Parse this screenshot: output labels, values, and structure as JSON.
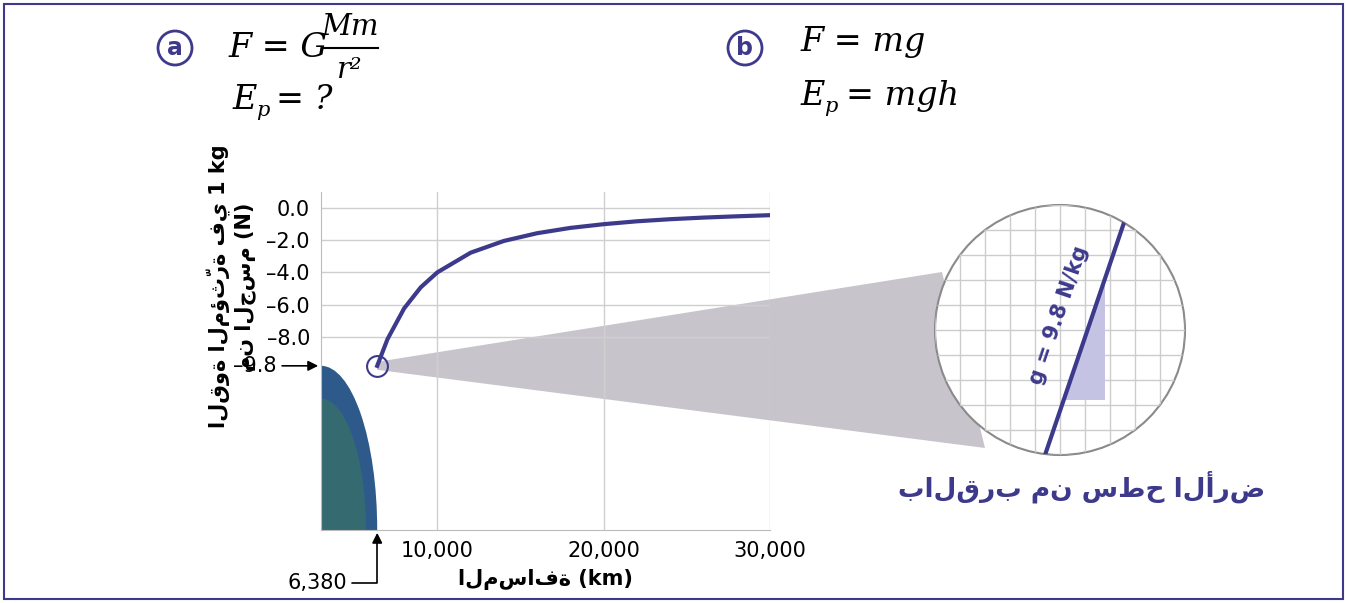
{
  "panels": {
    "a": {
      "label": "a",
      "force": {
        "lhs": "F = G",
        "numerator": "Mm",
        "denominator": "r²"
      },
      "energy": {
        "symbol": "E",
        "subscript": "p",
        "rhs": "= ?"
      }
    },
    "b": {
      "label": "b",
      "force": "F = mg",
      "energy": {
        "symbol": "E",
        "subscript": "p",
        "rhs": "= mgh"
      }
    }
  },
  "chart_data": {
    "type": "line",
    "color": "#3d3a8c",
    "x": [
      6380,
      7000,
      8000,
      9000,
      10000,
      12000,
      14000,
      16000,
      18000,
      20000,
      22000,
      24000,
      26000,
      28000,
      30000
    ],
    "values": [
      -9.8,
      -8.14,
      -6.23,
      -4.92,
      -3.99,
      -2.77,
      -2.04,
      -1.56,
      -1.23,
      -1.0,
      -0.82,
      -0.69,
      -0.59,
      -0.51,
      -0.44
    ],
    "xlabel": "المسافة (km)",
    "ylabel": "القوة المؤثّرة في 1 kg\nمن الجسم (N)",
    "xlim": [
      3000,
      30000
    ],
    "ylim": [
      -20,
      1.0
    ],
    "xticks": [
      {
        "value": 10000,
        "label": "10,000"
      },
      {
        "value": 20000,
        "label": "20,000"
      },
      {
        "value": 30000,
        "label": "30,000"
      }
    ],
    "yticks": [
      {
        "value": 0,
        "label": "0.0"
      },
      {
        "value": -2,
        "label": "–2.0"
      },
      {
        "value": -4,
        "label": "–4.0"
      },
      {
        "value": -6,
        "label": "–6.0"
      },
      {
        "value": -8,
        "label": "–8.0"
      }
    ],
    "grid": true,
    "annotations": [
      {
        "x": 6380,
        "y": -9.8,
        "x_label": "6,380",
        "y_label": "–9.8"
      }
    ]
  },
  "inset": {
    "label": "g = 9.8 N/kg",
    "caption": "بالقرب من سطح الأرض"
  }
}
